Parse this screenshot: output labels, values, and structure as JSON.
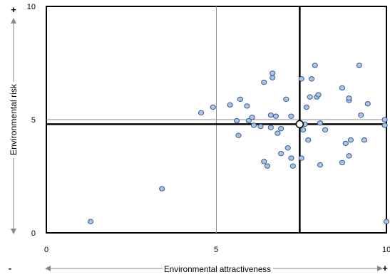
{
  "chart_data": {
    "type": "scatter",
    "title": "",
    "xlabel": "Environmental attractiveness",
    "ylabel": "Environmental risk",
    "xlim": [
      0,
      10
    ],
    "ylim": [
      0,
      10
    ],
    "x_ticks": [
      "0",
      "5",
      "10"
    ],
    "y_ticks": [
      "0",
      "5",
      "10"
    ],
    "x_minus_sign": "-",
    "x_plus_sign": "+",
    "y_plus_sign": "+",
    "grid": false,
    "point_color": "#a9c4e6",
    "point_edge_color": "#3a5a8c",
    "points": [
      {
        "x": 1.3,
        "y": 0.5
      },
      {
        "x": 3.4,
        "y": 1.95
      },
      {
        "x": 4.55,
        "y": 5.3
      },
      {
        "x": 4.9,
        "y": 5.55
      },
      {
        "x": 5.4,
        "y": 5.65
      },
      {
        "x": 5.6,
        "y": 4.95
      },
      {
        "x": 5.65,
        "y": 4.3
      },
      {
        "x": 5.7,
        "y": 5.9
      },
      {
        "x": 5.9,
        "y": 5.6
      },
      {
        "x": 5.95,
        "y": 4.95
      },
      {
        "x": 6.05,
        "y": 5.1
      },
      {
        "x": 6.1,
        "y": 4.75
      },
      {
        "x": 6.3,
        "y": 4.7
      },
      {
        "x": 6.4,
        "y": 6.65
      },
      {
        "x": 6.4,
        "y": 3.15
      },
      {
        "x": 6.5,
        "y": 2.95
      },
      {
        "x": 6.6,
        "y": 5.2
      },
      {
        "x": 6.6,
        "y": 4.65
      },
      {
        "x": 6.65,
        "y": 6.85
      },
      {
        "x": 6.65,
        "y": 7.05
      },
      {
        "x": 6.75,
        "y": 5.15
      },
      {
        "x": 6.8,
        "y": 4.4
      },
      {
        "x": 6.9,
        "y": 4.6
      },
      {
        "x": 6.9,
        "y": 3.5
      },
      {
        "x": 7.05,
        "y": 5.9
      },
      {
        "x": 7.1,
        "y": 3.75
      },
      {
        "x": 7.2,
        "y": 5.15
      },
      {
        "x": 7.2,
        "y": 3.3
      },
      {
        "x": 7.25,
        "y": 2.95
      },
      {
        "x": 7.5,
        "y": 6.8
      },
      {
        "x": 7.5,
        "y": 3.3
      },
      {
        "x": 7.55,
        "y": 4.55
      },
      {
        "x": 7.6,
        "y": 4.8
      },
      {
        "x": 7.65,
        "y": 5.55
      },
      {
        "x": 7.7,
        "y": 4.1
      },
      {
        "x": 7.75,
        "y": 6.0
      },
      {
        "x": 7.8,
        "y": 6.8
      },
      {
        "x": 7.9,
        "y": 7.4
      },
      {
        "x": 7.95,
        "y": 6.0
      },
      {
        "x": 8.0,
        "y": 6.1
      },
      {
        "x": 8.05,
        "y": 4.85
      },
      {
        "x": 8.05,
        "y": 3.0
      },
      {
        "x": 8.2,
        "y": 4.55
      },
      {
        "x": 8.7,
        "y": 6.4
      },
      {
        "x": 8.7,
        "y": 3.1
      },
      {
        "x": 8.8,
        "y": 3.95
      },
      {
        "x": 8.9,
        "y": 5.85
      },
      {
        "x": 8.9,
        "y": 5.95
      },
      {
        "x": 8.9,
        "y": 3.4
      },
      {
        "x": 8.95,
        "y": 4.1
      },
      {
        "x": 9.2,
        "y": 7.4
      },
      {
        "x": 9.25,
        "y": 5.2
      },
      {
        "x": 9.35,
        "y": 4.1
      },
      {
        "x": 9.45,
        "y": 5.7
      },
      {
        "x": 9.95,
        "y": 5.0
      },
      {
        "x": 9.95,
        "y": 4.75
      },
      {
        "x": 10.0,
        "y": 0.5
      }
    ],
    "mean_point": {
      "x": 7.45,
      "y": 4.8
    },
    "reference_lines": {
      "x": 5,
      "y": 5
    },
    "mean_lines": {
      "x": 7.45,
      "y": 4.8
    }
  }
}
